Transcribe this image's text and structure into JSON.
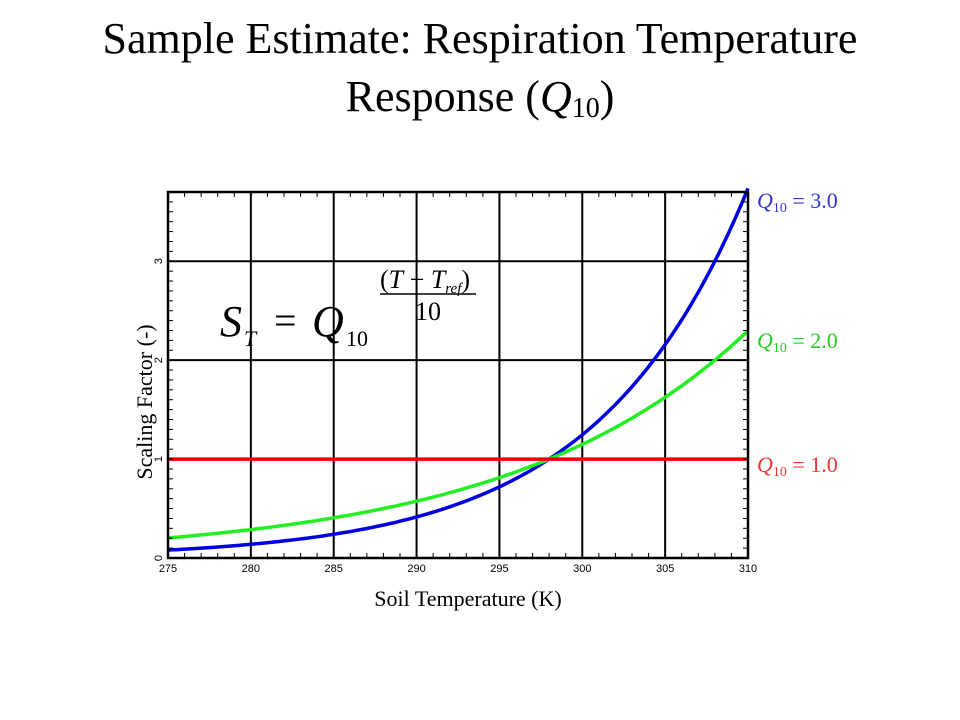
{
  "slide": {
    "title_line1": "Sample Estimate: Respiration Temperature",
    "title_line2_main": "Response (",
    "title_q": "Q",
    "title_sub": "10",
    "title_close": ")"
  },
  "equation": {
    "lhs_main": "S",
    "lhs_sub": "T",
    "equals": "=",
    "base_main": "Q",
    "base_sub": "10",
    "exp_open": "(",
    "exp_t": "T",
    "exp_minus": " − ",
    "exp_tref_main": "T",
    "exp_tref_sub": "ref",
    "exp_close": ")",
    "exp_denominator": "10"
  },
  "chart_data": {
    "type": "line",
    "xlabel": "Soil Temperature (K)",
    "ylabel": "Scaling Factor (-)",
    "xlim": [
      275,
      310
    ],
    "ylim": [
      0,
      3.7
    ],
    "xticks": [
      275,
      280,
      285,
      290,
      295,
      300,
      305,
      310
    ],
    "yticks": [
      0,
      1,
      2,
      3
    ],
    "grid": true,
    "t_ref": 298,
    "series": [
      {
        "name": "Q10 = 3.0",
        "q10": 3.0,
        "color": "#0000e0",
        "label_color": "#3333cc",
        "x": [
          275,
          280,
          285,
          290,
          295,
          298,
          300,
          305,
          308,
          310
        ],
        "y": [
          0.08,
          0.14,
          0.24,
          0.42,
          0.72,
          1.0,
          1.25,
          2.16,
          2.99,
          3.73
        ]
      },
      {
        "name": "Q10 = 2.0",
        "q10": 2.0,
        "color": "#22ee22",
        "label_color": "#22cc22",
        "x": [
          275,
          280,
          285,
          290,
          295,
          298,
          300,
          305,
          308,
          310
        ],
        "y": [
          0.2,
          0.29,
          0.41,
          0.57,
          0.81,
          1.0,
          1.15,
          1.62,
          2.0,
          2.3
        ]
      },
      {
        "name": "Q10 = 1.0",
        "q10": 1.0,
        "color": "#ee0000",
        "label_color": "#ee3333",
        "x": [
          275,
          310
        ],
        "y": [
          1.0,
          1.0
        ]
      }
    ]
  },
  "legend": [
    {
      "q": "Q",
      "sub": "10",
      "value": " = 3.0",
      "color": "#3333cc"
    },
    {
      "q": "Q",
      "sub": "10",
      "value": " = 2.0",
      "color": "#22cc22"
    },
    {
      "q": "Q",
      "sub": "10",
      "value": " = 1.0",
      "color": "#ee3333"
    }
  ]
}
